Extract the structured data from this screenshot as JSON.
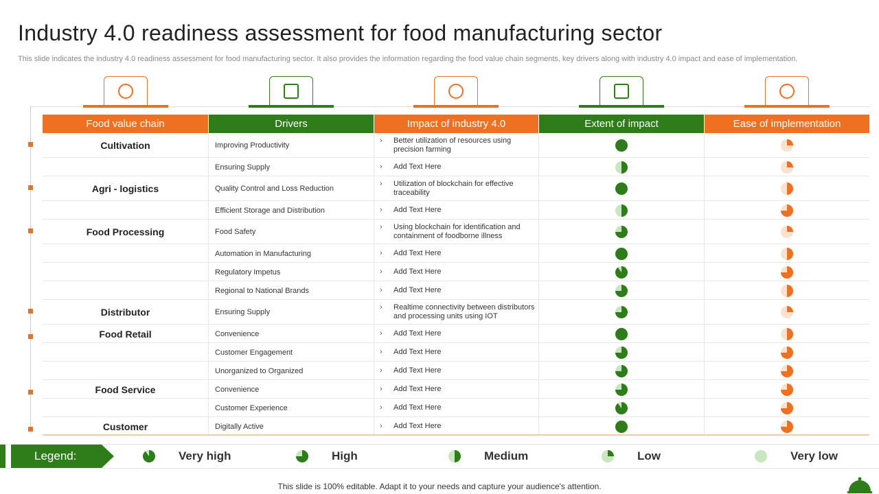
{
  "title": "Industry 4.0 readiness assessment for food manufacturing sector",
  "subtitle": "This slide indicates the industry 4.0 readiness assessment for food manufacturing sector. It also provides the information regarding the food value chain segments, key drivers along with industry 4.0 impact and ease of implementation.",
  "table": {
    "headers": [
      "Food value chain",
      "Drivers",
      "Impact of industry 4.0",
      "Extent of impact",
      "Ease of implementation"
    ],
    "rows": [
      {
        "chain": "Cultivation",
        "driver": "Improving Productivity",
        "impact": "Better utilization of resources using precision farming",
        "extent": 1,
        "ease": 0.25
      },
      {
        "chain": null,
        "driver": "Ensuring Supply",
        "impact": "Add Text Here",
        "extent": 0.5,
        "ease": 0.25
      },
      {
        "chain": "Agri - logistics",
        "driver": "Quality Control and Loss Reduction",
        "impact": "Utilization of blockchain for effective traceability",
        "extent": 1,
        "ease": 0.5
      },
      {
        "chain": null,
        "driver": "Efficient Storage and Distribution",
        "impact": "Add Text Here",
        "extent": 0.5,
        "ease": 0.75
      },
      {
        "chain": "Food Processing",
        "driver": "Food Safety",
        "impact": "Using blockchain for identification and containment of foodborne illness",
        "extent": 0.75,
        "ease": 0.25
      },
      {
        "chain": null,
        "driver": "Automation in Manufacturing",
        "impact": "Add Text Here",
        "extent": 1,
        "ease": 0.5
      },
      {
        "chain": null,
        "driver": "Regulatory Impetus",
        "impact": "Add Text Here",
        "extent": 0.9,
        "ease": 0.75
      },
      {
        "chain": null,
        "driver": "Regional  to National Brands",
        "impact": "Add Text Here",
        "extent": 0.75,
        "ease": 0.5
      },
      {
        "chain": "Distributor",
        "driver": "Ensuring Supply",
        "impact": "Realtime  connectivity between distributors and processing units using IOT",
        "extent": 0.75,
        "ease": 0.25
      },
      {
        "chain": "Food Retail",
        "driver": "Convenience",
        "impact": "Add Text Here",
        "extent": 1,
        "ease": 0.5
      },
      {
        "chain": null,
        "driver": "Customer Engagement",
        "impact": "Add Text Here",
        "extent": 0.75,
        "ease": 0.75
      },
      {
        "chain": null,
        "driver": "Unorganized to Organized",
        "impact": "Add Text Here",
        "extent": 0.75,
        "ease": 0.75
      },
      {
        "chain": "Food Service",
        "driver": "Convenience",
        "impact": "Add Text Here",
        "extent": 0.75,
        "ease": 0.75
      },
      {
        "chain": null,
        "driver": "Customer Experience",
        "impact": "Add Text Here",
        "extent": 0.9,
        "ease": 0.75
      },
      {
        "chain": "Customer",
        "driver": "Digitally Active",
        "impact": "Add Text Here",
        "extent": 1,
        "ease": 0.75
      }
    ]
  },
  "legend": {
    "title": "Legend:",
    "items": [
      {
        "label": "Very high",
        "value": 0.9
      },
      {
        "label": "High",
        "value": 0.75
      },
      {
        "label": "Medium",
        "value": 0.5
      },
      {
        "label": "Low",
        "value": 0.25
      },
      {
        "label": "Very low",
        "value": 0
      }
    ]
  },
  "footer": "This slide is 100% editable. Adapt it to your needs and capture your audience's attention."
}
